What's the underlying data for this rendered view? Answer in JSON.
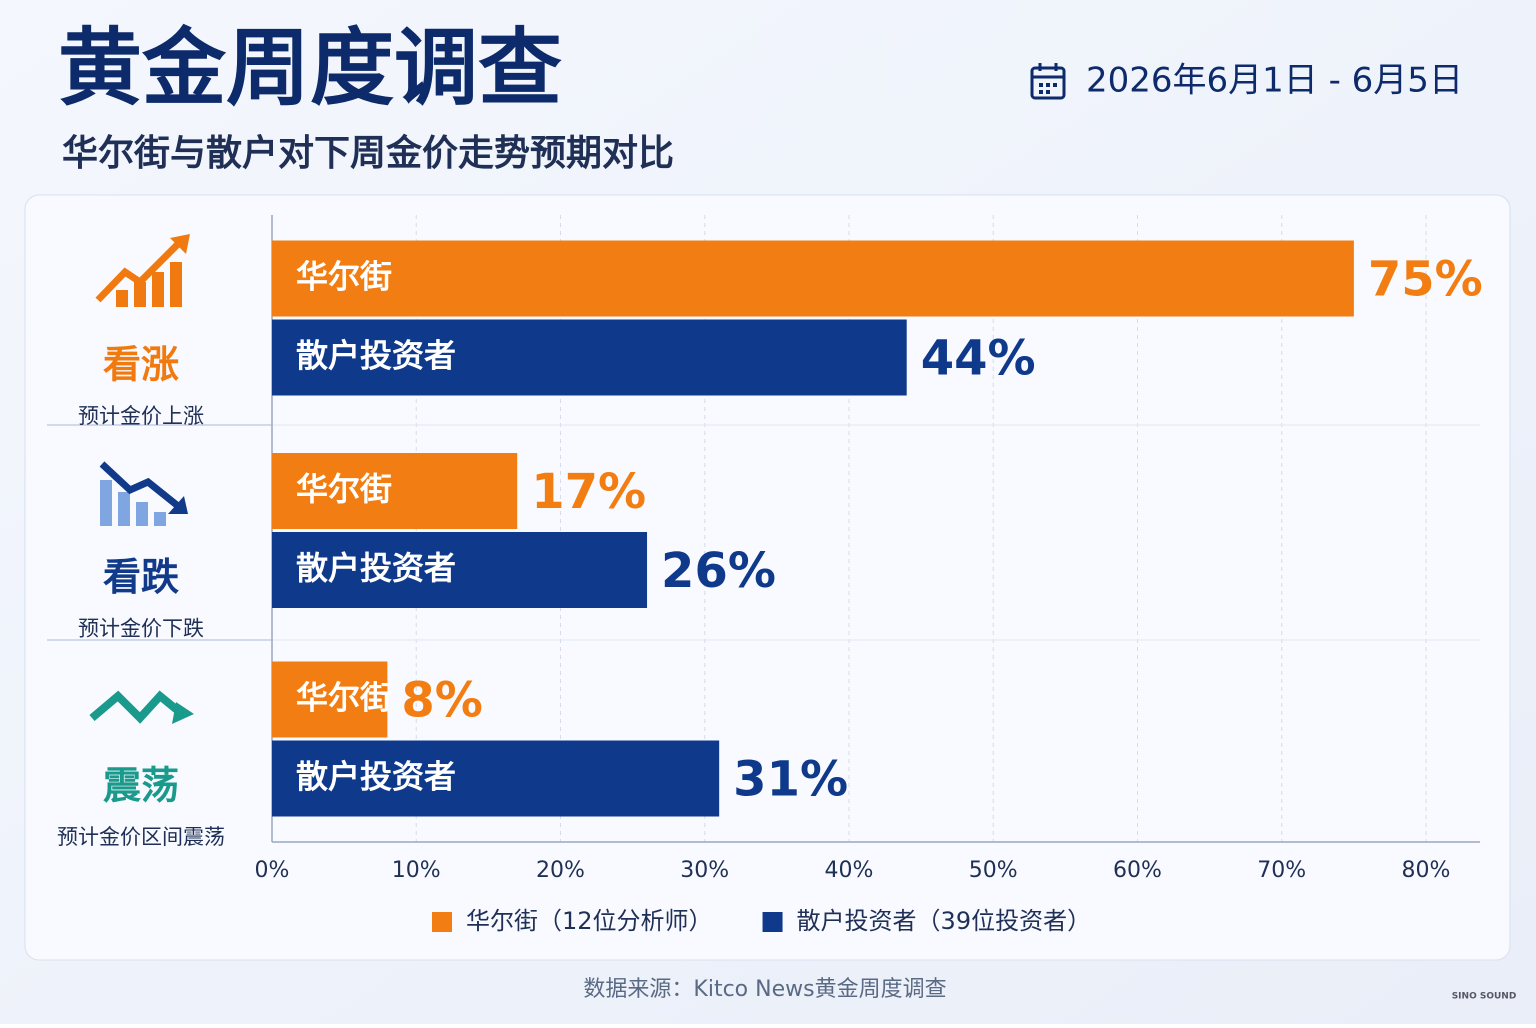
{
  "header": {
    "title": "黄金周度调查",
    "subtitle": "华尔街与散户对下周金价走势预期对比",
    "date": "2026年6月1日 - 6月5日"
  },
  "chart_data": {
    "type": "bar",
    "orientation": "horizontal",
    "categories": [
      "看涨",
      "看跌",
      "震荡"
    ],
    "category_notes": [
      "预计金价上涨",
      "预计金价下跌",
      "预计金价区间震荡"
    ],
    "category_colors": [
      "#f07a10",
      "#123a8a",
      "#1a9a8c"
    ],
    "series": [
      {
        "name": "华尔街",
        "legend_label": "华尔街（12位分析师）",
        "color": "#f27d12",
        "values": [
          75,
          17,
          8
        ],
        "value_labels": [
          "75%",
          "17%",
          "8%"
        ]
      },
      {
        "name": "散户投资者",
        "legend_label": "散户投资者（39位投资者）",
        "color": "#0f3a8c",
        "values": [
          44,
          26,
          31
        ],
        "value_labels": [
          "44%",
          "26%",
          "31%"
        ]
      }
    ],
    "xlim": [
      0,
      80
    ],
    "xticks": [
      {
        "value": 0,
        "label": "0%"
      },
      {
        "value": 10,
        "label": "10%"
      },
      {
        "value": 20,
        "label": "20%"
      },
      {
        "value": 30,
        "label": "30%"
      },
      {
        "value": 40,
        "label": "40%"
      },
      {
        "value": 50,
        "label": "50%"
      },
      {
        "value": 60,
        "label": "60%"
      },
      {
        "value": 70,
        "label": "70%"
      },
      {
        "value": 80,
        "label": "80%"
      }
    ],
    "grid": true,
    "legend": "bottom"
  },
  "footer": {
    "source": "数据来源：Kitco News黄金周度调查",
    "logo": "SINO SOUND"
  }
}
